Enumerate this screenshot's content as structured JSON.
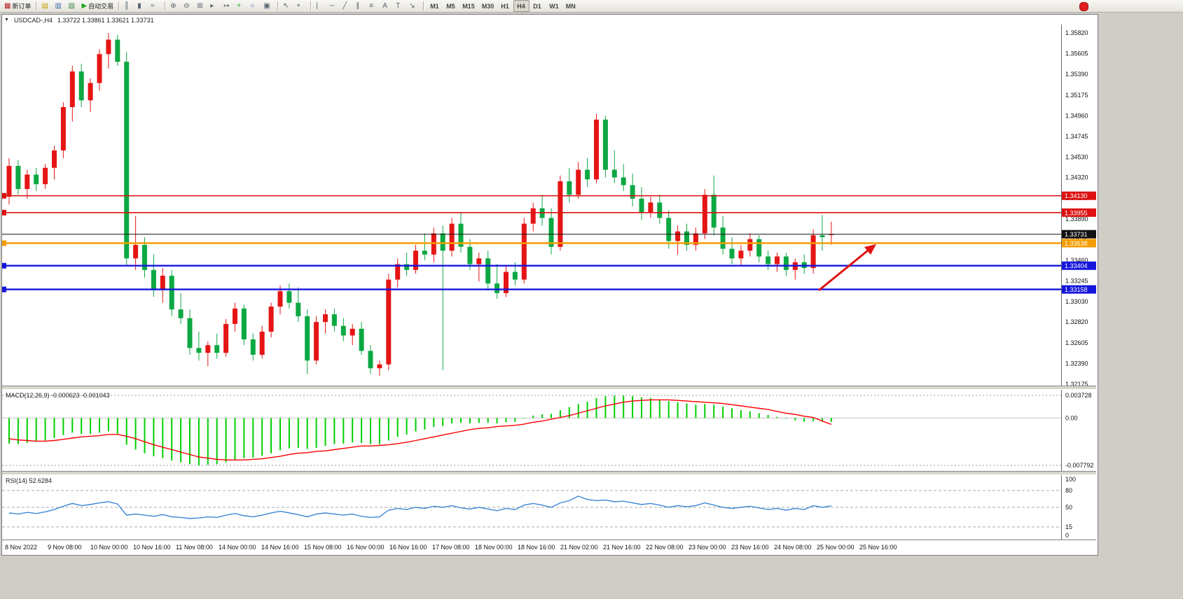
{
  "toolbar": {
    "items": [
      {
        "name": "new-order-button",
        "glyph": "▦",
        "label": "新订单",
        "glyph_color": "#b02020"
      },
      {
        "sep": true
      },
      {
        "name": "market-watch-icon",
        "glyph": "▤",
        "glyph_color": "#c8a000"
      },
      {
        "name": "data-window-icon",
        "glyph": "▥",
        "glyph_color": "#3a6ab0"
      },
      {
        "name": "navigator-icon",
        "glyph": "▧",
        "glyph_color": "#3a8a50"
      },
      {
        "name": "autotrade-button",
        "glyph": "▶",
        "label": "自动交易",
        "glyph_color": "#1fa31f"
      },
      {
        "sep": true
      },
      {
        "name": "bar-chart-icon",
        "glyph": "║"
      },
      {
        "name": "candle-chart-icon",
        "glyph": "▮"
      },
      {
        "name": "line-chart-icon",
        "glyph": "≈"
      },
      {
        "sep": true
      },
      {
        "name": "zoom-in-icon",
        "glyph": "⊕"
      },
      {
        "name": "zoom-out-icon",
        "glyph": "⊖"
      },
      {
        "name": "tile-windows-icon",
        "glyph": "⊞"
      },
      {
        "name": "auto-scroll-icon",
        "glyph": "▸"
      },
      {
        "name": "chart-shift-icon",
        "glyph": "↦"
      },
      {
        "name": "indicators-icon",
        "glyph": "+",
        "glyph_color": "#1fa31f"
      },
      {
        "name": "periods-icon",
        "glyph": "○",
        "glyph_color": "#3a6ab0"
      },
      {
        "name": "templates-icon",
        "glyph": "▣"
      },
      {
        "sep": true
      },
      {
        "name": "cursor-icon",
        "glyph": "↖"
      },
      {
        "name": "crosshair-icon",
        "glyph": "+"
      },
      {
        "sep": true
      },
      {
        "name": "vertical-line-icon",
        "glyph": "|"
      },
      {
        "name": "horizontal-line-icon",
        "glyph": "─"
      },
      {
        "name": "trendline-icon",
        "glyph": "╱"
      },
      {
        "name": "channel-icon",
        "glyph": "∥"
      },
      {
        "name": "fibonacci-icon",
        "glyph": "≡"
      },
      {
        "name": "text-icon",
        "glyph": "A"
      },
      {
        "name": "label-icon",
        "glyph": "T"
      },
      {
        "name": "shapes-icon",
        "glyph": "↘"
      },
      {
        "sep": true
      },
      {
        "name": "tf-m1-button",
        "label": "M1",
        "tf": true
      },
      {
        "name": "tf-m5-button",
        "label": "M5",
        "tf": true
      },
      {
        "name": "tf-m15-button",
        "label": "M15",
        "tf": true
      },
      {
        "name": "tf-m30-button",
        "label": "M30",
        "tf": true
      },
      {
        "name": "tf-h1-button",
        "label": "H1",
        "tf": true
      },
      {
        "name": "tf-h4-button",
        "label": "H4",
        "tf": true,
        "active": true
      },
      {
        "name": "tf-d1-button",
        "label": "D1",
        "tf": true
      },
      {
        "name": "tf-w1-button",
        "label": "W1",
        "tf": true
      },
      {
        "name": "tf-mn-button",
        "label": "MN",
        "tf": true
      }
    ]
  },
  "window": {
    "menu_glyph": "▼",
    "title": "USDCAD-,H4",
    "ohlc": "1.33722 1.33861 1.33621 1.33731"
  },
  "indicators": {
    "macd_label": "MACD(12,26,9) -0.000623 -0.001043",
    "rsi_label": "RSI(14) 52.6284",
    "macd_axis": [
      "0.003728",
      "0.00",
      "-0.007792"
    ],
    "rsi_axis": [
      "100",
      "80",
      "50",
      "15",
      "0"
    ],
    "rsi_levels": [
      80,
      50,
      15
    ]
  },
  "chart_data": {
    "type": "candlestick",
    "symbol": "USDCAD",
    "period": "H4",
    "current_price": 1.33731,
    "price_ticks": [
      "1.35820",
      "1.35605",
      "1.35390",
      "1.35175",
      "1.34960",
      "1.34745",
      "1.34530",
      "1.34320",
      "1.34105",
      "1.33890",
      "1.33675",
      "1.33460",
      "1.33245",
      "1.33030",
      "1.32820",
      "1.32605",
      "1.32390",
      "1.32175"
    ],
    "time_labels": [
      "8 Nov 2022",
      "9 Nov 08:00",
      "10 Nov 00:00",
      "10 Nov 16:00",
      "11 Nov 08:00",
      "14 Nov 00:00",
      "14 Nov 16:00",
      "15 Nov 08:00",
      "16 Nov 00:00",
      "16 Nov 16:00",
      "17 Nov 08:00",
      "18 Nov 00:00",
      "18 Nov 16:00",
      "21 Nov 02:00",
      "21 Nov 16:00",
      "22 Nov 08:00",
      "23 Nov 00:00",
      "23 Nov 16:00",
      "24 Nov 08:00",
      "25 Nov 00:00",
      "25 Nov 16:00"
    ],
    "levels": [
      {
        "label": "1.34130",
        "price": 1.3413,
        "color": "#dd1111",
        "width": 1.6,
        "edge": true
      },
      {
        "label": "1.33955",
        "price": 1.33955,
        "color": "#dd1111",
        "width": 1.6,
        "edge": true
      },
      {
        "label": "1.33731",
        "price": 1.33731,
        "color": "#111111",
        "width": 1,
        "edge": false
      },
      {
        "label": "1.33638",
        "price": 1.33638,
        "color": "#f59d00",
        "width": 2.4,
        "edge": true
      },
      {
        "label": "1.33404",
        "price": 1.33404,
        "color": "#1515dd",
        "width": 2.4,
        "edge": true
      },
      {
        "label": "1.33158",
        "price": 1.33158,
        "color": "#1515dd",
        "width": 2.4,
        "edge": true
      }
    ],
    "candles": [
      [
        1.3412,
        1.3452,
        1.3404,
        1.3444
      ],
      [
        1.3444,
        1.345,
        1.3414,
        1.342
      ],
      [
        1.342,
        1.344,
        1.341,
        1.3435
      ],
      [
        1.3435,
        1.3442,
        1.3418,
        1.3425
      ],
      [
        1.3425,
        1.3446,
        1.342,
        1.3442
      ],
      [
        1.3442,
        1.3465,
        1.343,
        1.346
      ],
      [
        1.346,
        1.351,
        1.3452,
        1.3505
      ],
      [
        1.3505,
        1.3548,
        1.349,
        1.3542
      ],
      [
        1.3542,
        1.355,
        1.3505,
        1.3512
      ],
      [
        1.3512,
        1.3535,
        1.35,
        1.353
      ],
      [
        1.353,
        1.3565,
        1.3522,
        1.356
      ],
      [
        1.356,
        1.3582,
        1.3545,
        1.3575
      ],
      [
        1.3575,
        1.358,
        1.3548,
        1.3552
      ],
      [
        1.3552,
        1.3562,
        1.334,
        1.3348
      ],
      [
        1.3348,
        1.3392,
        1.3336,
        1.3362
      ],
      [
        1.3362,
        1.337,
        1.3328,
        1.3336
      ],
      [
        1.3336,
        1.3352,
        1.3308,
        1.3315
      ],
      [
        1.3315,
        1.3338,
        1.3302,
        1.333
      ],
      [
        1.333,
        1.3336,
        1.3288,
        1.3295
      ],
      [
        1.3295,
        1.3312,
        1.328,
        1.3286
      ],
      [
        1.3286,
        1.3295,
        1.3248,
        1.3255
      ],
      [
        1.3255,
        1.3272,
        1.3242,
        1.325
      ],
      [
        1.325,
        1.3262,
        1.3236,
        1.3258
      ],
      [
        1.3258,
        1.327,
        1.3244,
        1.325
      ],
      [
        1.325,
        1.3285,
        1.3246,
        1.328
      ],
      [
        1.328,
        1.3302,
        1.3272,
        1.3296
      ],
      [
        1.3296,
        1.33,
        1.3258,
        1.3264
      ],
      [
        1.3264,
        1.327,
        1.3242,
        1.3248
      ],
      [
        1.3248,
        1.3278,
        1.3244,
        1.3272
      ],
      [
        1.3272,
        1.3302,
        1.3266,
        1.3298
      ],
      [
        1.3298,
        1.332,
        1.329,
        1.3314
      ],
      [
        1.3314,
        1.3322,
        1.3296,
        1.3302
      ],
      [
        1.3302,
        1.3318,
        1.3282,
        1.3288
      ],
      [
        1.3288,
        1.3295,
        1.3228,
        1.3242
      ],
      [
        1.3242,
        1.3288,
        1.3238,
        1.3282
      ],
      [
        1.3282,
        1.3295,
        1.327,
        1.329
      ],
      [
        1.329,
        1.3296,
        1.3272,
        1.3278
      ],
      [
        1.3278,
        1.3286,
        1.3262,
        1.3268
      ],
      [
        1.3268,
        1.328,
        1.3258,
        1.3275
      ],
      [
        1.3275,
        1.3282,
        1.3248,
        1.3252
      ],
      [
        1.3252,
        1.3258,
        1.3228,
        1.3234
      ],
      [
        1.3234,
        1.3242,
        1.3226,
        1.3238
      ],
      [
        1.3238,
        1.3332,
        1.3232,
        1.3326
      ],
      [
        1.3326,
        1.3348,
        1.3318,
        1.3342
      ],
      [
        1.3342,
        1.3354,
        1.333,
        1.3336
      ],
      [
        1.3336,
        1.3362,
        1.3332,
        1.3356
      ],
      [
        1.3356,
        1.3374,
        1.3346,
        1.3352
      ],
      [
        1.3352,
        1.338,
        1.3344,
        1.3374
      ],
      [
        1.3374,
        1.3382,
        1.3232,
        1.3356
      ],
      [
        1.3356,
        1.339,
        1.335,
        1.3384
      ],
      [
        1.3384,
        1.3396,
        1.3354,
        1.336
      ],
      [
        1.336,
        1.3368,
        1.3336,
        1.3342
      ],
      [
        1.3342,
        1.3354,
        1.3324,
        1.3348
      ],
      [
        1.3348,
        1.3356,
        1.3316,
        1.3322
      ],
      [
        1.3322,
        1.3342,
        1.3306,
        1.3312
      ],
      [
        1.3312,
        1.334,
        1.3308,
        1.3334
      ],
      [
        1.3334,
        1.3344,
        1.332,
        1.3326
      ],
      [
        1.3326,
        1.339,
        1.3322,
        1.3384
      ],
      [
        1.3384,
        1.3406,
        1.3376,
        1.34
      ],
      [
        1.34,
        1.3414,
        1.3382,
        1.339
      ],
      [
        1.339,
        1.34,
        1.3352,
        1.336
      ],
      [
        1.336,
        1.3434,
        1.3356,
        1.3428
      ],
      [
        1.3428,
        1.3442,
        1.3406,
        1.3414
      ],
      [
        1.3414,
        1.3448,
        1.341,
        1.344
      ],
      [
        1.344,
        1.3452,
        1.3422,
        1.343
      ],
      [
        1.343,
        1.3498,
        1.3426,
        1.3492
      ],
      [
        1.3492,
        1.3496,
        1.3432,
        1.344
      ],
      [
        1.344,
        1.346,
        1.3426,
        1.3432
      ],
      [
        1.3432,
        1.3446,
        1.3418,
        1.3424
      ],
      [
        1.3424,
        1.3436,
        1.3402,
        1.341
      ],
      [
        1.341,
        1.3422,
        1.3388,
        1.3396
      ],
      [
        1.3396,
        1.3412,
        1.339,
        1.3406
      ],
      [
        1.3406,
        1.3414,
        1.3384,
        1.339
      ],
      [
        1.339,
        1.3398,
        1.3358,
        1.3366
      ],
      [
        1.3366,
        1.3382,
        1.3352,
        1.3376
      ],
      [
        1.3376,
        1.3384,
        1.3356,
        1.3362
      ],
      [
        1.3362,
        1.338,
        1.3356,
        1.3374
      ],
      [
        1.3374,
        1.342,
        1.3368,
        1.3414
      ],
      [
        1.3414,
        1.3434,
        1.3372,
        1.338
      ],
      [
        1.338,
        1.3392,
        1.3352,
        1.3358
      ],
      [
        1.3358,
        1.337,
        1.3342,
        1.3348
      ],
      [
        1.3348,
        1.3362,
        1.334,
        1.3356
      ],
      [
        1.3356,
        1.3374,
        1.335,
        1.3368
      ],
      [
        1.3368,
        1.3372,
        1.3344,
        1.335
      ],
      [
        1.335,
        1.3356,
        1.3336,
        1.3342
      ],
      [
        1.3342,
        1.3354,
        1.3334,
        1.335
      ],
      [
        1.335,
        1.3354,
        1.333,
        1.3336
      ],
      [
        1.3336,
        1.3348,
        1.3326,
        1.3344
      ],
      [
        1.3344,
        1.3352,
        1.3332,
        1.3338
      ],
      [
        1.3338,
        1.3378,
        1.3332,
        1.3372
      ],
      [
        1.3372,
        1.3393,
        1.3356,
        1.337
      ],
      [
        1.33722,
        1.33861,
        1.33621,
        1.33731
      ]
    ],
    "macd_main": [
      -0.0042,
      -0.0043,
      -0.0041,
      -0.0039,
      -0.0037,
      -0.0033,
      -0.0028,
      -0.0024,
      -0.0026,
      -0.0026,
      -0.0024,
      -0.0022,
      -0.0026,
      -0.0044,
      -0.0052,
      -0.0058,
      -0.0063,
      -0.0066,
      -0.007,
      -0.0073,
      -0.0076,
      -0.0078,
      -0.0077,
      -0.0076,
      -0.0073,
      -0.0069,
      -0.0066,
      -0.0065,
      -0.0062,
      -0.0058,
      -0.0053,
      -0.005,
      -0.0049,
      -0.0051,
      -0.0049,
      -0.0046,
      -0.0043,
      -0.0042,
      -0.004,
      -0.0041,
      -0.0043,
      -0.0043,
      -0.0037,
      -0.0031,
      -0.0027,
      -0.0022,
      -0.0019,
      -0.0015,
      -0.0013,
      -0.0009,
      -0.0008,
      -0.0009,
      -0.0008,
      -0.0008,
      -0.0009,
      -0.0007,
      -0.0006,
      -0.0001,
      0.0004,
      0.0006,
      0.0007,
      0.0013,
      0.0018,
      0.0023,
      0.0027,
      0.0033,
      0.0036,
      0.0037,
      0.0037,
      0.0036,
      0.0034,
      0.0033,
      0.0031,
      0.0028,
      0.0026,
      0.0024,
      0.0022,
      0.0023,
      0.0022,
      0.0019,
      0.0016,
      0.0013,
      0.0011,
      0.0008,
      0.0005,
      0.0002,
      -0.0001,
      -0.0004,
      -0.0006,
      -0.0005,
      -0.0006,
      -0.000623
    ],
    "macd_signal": [
      -0.0034,
      -0.0036,
      -0.0037,
      -0.0038,
      -0.0038,
      -0.0037,
      -0.0035,
      -0.0033,
      -0.0031,
      -0.003,
      -0.0029,
      -0.0027,
      -0.0027,
      -0.003,
      -0.0034,
      -0.0039,
      -0.0044,
      -0.0048,
      -0.0052,
      -0.0056,
      -0.006,
      -0.0064,
      -0.0066,
      -0.0068,
      -0.0069,
      -0.0069,
      -0.0069,
      -0.0068,
      -0.0067,
      -0.0065,
      -0.0063,
      -0.006,
      -0.0058,
      -0.0057,
      -0.0055,
      -0.0054,
      -0.0052,
      -0.005,
      -0.0048,
      -0.0046,
      -0.0046,
      -0.0045,
      -0.0044,
      -0.0042,
      -0.004,
      -0.0037,
      -0.0034,
      -0.0031,
      -0.0028,
      -0.0025,
      -0.0022,
      -0.0019,
      -0.0017,
      -0.0016,
      -0.0014,
      -0.0013,
      -0.0012,
      -0.001,
      -0.0007,
      -0.0005,
      -0.0002,
      0.0001,
      0.0004,
      0.0008,
      0.0012,
      0.0016,
      0.002,
      0.0023,
      0.0026,
      0.0028,
      0.0029,
      0.003,
      0.003,
      0.003,
      0.0029,
      0.0028,
      0.0027,
      0.0026,
      0.0025,
      0.0024,
      0.0022,
      0.002,
      0.0018,
      0.0016,
      0.0014,
      0.0011,
      0.0008,
      0.0006,
      0.0003,
      0.0001,
      -0.0005,
      -0.001043
    ],
    "rsi": [
      40,
      38,
      41,
      39,
      42,
      46,
      52,
      57,
      53,
      55,
      58,
      60,
      56,
      36,
      38,
      36,
      34,
      37,
      33,
      32,
      30,
      31,
      33,
      32,
      36,
      39,
      35,
      33,
      36,
      40,
      43,
      40,
      37,
      33,
      38,
      40,
      38,
      36,
      38,
      34,
      32,
      33,
      45,
      48,
      46,
      50,
      48,
      52,
      50,
      53,
      49,
      47,
      50,
      47,
      44,
      48,
      46,
      54,
      57,
      54,
      50,
      58,
      62,
      70,
      64,
      62,
      63,
      60,
      61,
      58,
      55,
      57,
      54,
      50,
      53,
      51,
      53,
      58,
      54,
      50,
      48,
      50,
      52,
      49,
      46,
      48,
      45,
      48,
      46,
      53,
      50,
      52.6
    ],
    "colors": {
      "bull": "#e51515",
      "bear": "#0ca843",
      "macd_hist": "#00cf00",
      "macd_signal": "#ff0000",
      "rsi_line": "#3d87d6",
      "arrow": "#e01010"
    },
    "annotation": {
      "type": "arrow",
      "direction": "up-right"
    }
  }
}
